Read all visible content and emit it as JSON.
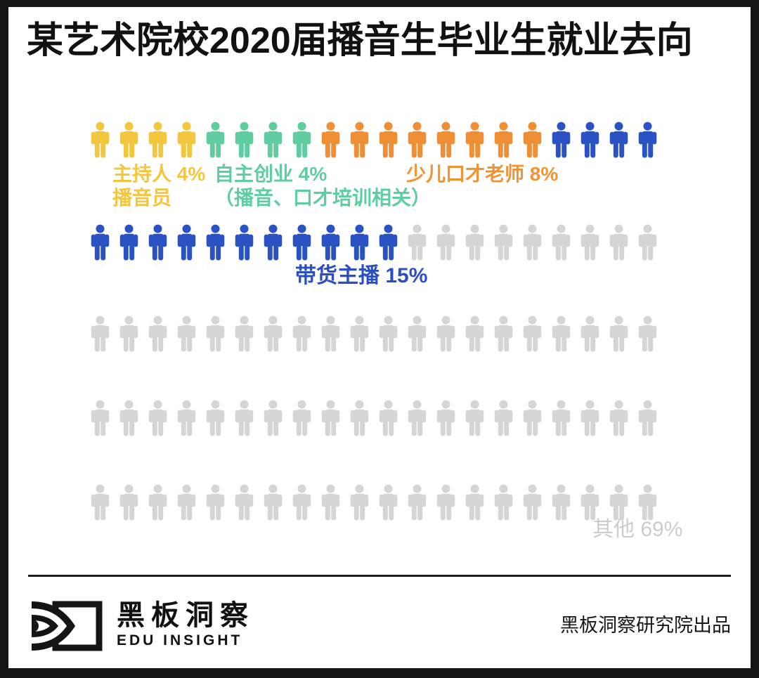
{
  "page": {
    "title": "某艺术院校2020届播音生毕业生就业去向",
    "footer": {
      "brand_cn": "黑板洞察",
      "brand_en": "EDU INSIGHT",
      "credit": "黑板洞察研究院出品"
    }
  },
  "chart_data": {
    "type": "pictogram-waffle",
    "title": "某艺术院校2020届播音生毕业生就业去向",
    "total_icons": 100,
    "icons_per_row": 20,
    "rows": 5,
    "percent_per_icon": 1,
    "legend_position": "inline-below-rows",
    "categories": [
      {
        "name": "主持人/播音员",
        "value_percent": 4,
        "color": "#F2C63F",
        "label_color": "#F2C63F",
        "label_lines": [
          "主持人 4%",
          "播音员"
        ]
      },
      {
        "name": "自主创业（播音、口才培训相关）",
        "value_percent": 4,
        "color": "#5FCDA0",
        "label_color": "#5FCDA0",
        "label_lines": [
          "自主创业 4%",
          "（播音、口才培训相关）"
        ]
      },
      {
        "name": "少儿口才老师",
        "value_percent": 8,
        "color": "#EE8F35",
        "label_color": "#EE9435",
        "label_lines": [
          "少儿口才老师 8%"
        ]
      },
      {
        "name": "带货主播",
        "value_percent": 15,
        "color": "#2B52C2",
        "label_color": "#2B4EC0",
        "label_lines": [
          "带货主播 15%"
        ]
      },
      {
        "name": "其他",
        "value_percent": 69,
        "color": "#D5D5D5",
        "label_color": "#C9CDD2",
        "label_lines": [
          "其他 69%"
        ]
      }
    ]
  }
}
